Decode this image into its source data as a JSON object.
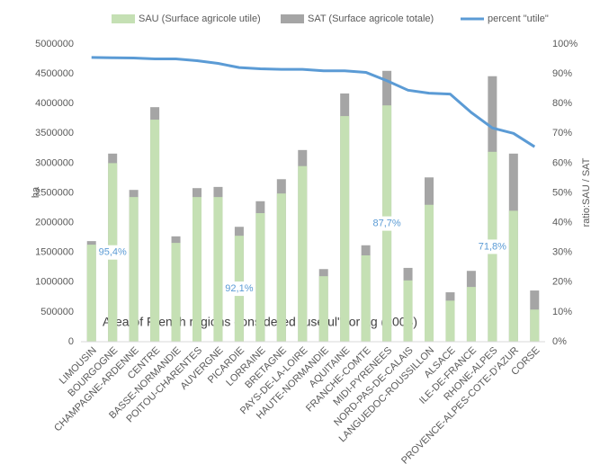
{
  "chart_data": {
    "type": "bar",
    "overlap": true,
    "annotation": "Area of French regions considered \"useful\" for ag (2008)",
    "categories": [
      "LIMOUSIN",
      "BOURGOGNE",
      "CHAMPAGNE-ARDENNE",
      "CENTRE",
      "BASSE-NORMANDIE",
      "POITOU-CHARENTES",
      "AUVERGNE",
      "PICARDIE",
      "LORRAINE",
      "BRETAGNE",
      "PAYS-DE-LA-LOIRE",
      "HAUTE-NORMANDIE",
      "AQUITAINE",
      "FRANCHE-COMTE",
      "MIDI-PYRENEES",
      "NORD-PAS-DE-CALAIS",
      "LANGUEDOC-ROUSSILLON",
      "ALSACE",
      "ILE-DE-FRANCE",
      "RHONE-ALPES",
      "PROVENCE-ALPES-COTE-D'AZUR",
      "CORSE"
    ],
    "series": [
      {
        "name": "SAU (Surface agricole utile)",
        "color": "#c5e0b4",
        "type": "bar",
        "values": [
          1630000,
          3000000,
          2430000,
          3730000,
          1660000,
          2430000,
          2430000,
          1780000,
          2160000,
          2490000,
          2950000,
          1100000,
          3790000,
          1450000,
          3970000,
          1030000,
          2300000,
          690000,
          920000,
          3190000,
          2200000,
          540000
        ]
      },
      {
        "name": "SAT (Surface agricole totale)",
        "color": "#a5a5a5",
        "type": "bar",
        "values": [
          1690000,
          3160000,
          2550000,
          3940000,
          1770000,
          2580000,
          2600000,
          1930000,
          2360000,
          2730000,
          3220000,
          1220000,
          4170000,
          1620000,
          4550000,
          1240000,
          2760000,
          830000,
          1190000,
          4460000,
          3160000,
          860000
        ]
      },
      {
        "name": "percent \"utile\"",
        "color": "#5b9bd5",
        "type": "line",
        "axis": "y2",
        "values": [
          95.5,
          95.4,
          95.3,
          95,
          95,
          94.4,
          93.5,
          92.1,
          91.7,
          91.5,
          91.5,
          91,
          91,
          90.5,
          87.7,
          84.5,
          83.5,
          83.2,
          77,
          71.8,
          70,
          65.5
        ],
        "value_labels": [
          null,
          "95,4%",
          null,
          null,
          null,
          null,
          null,
          "92,1%",
          null,
          null,
          null,
          null,
          null,
          null,
          "87,7%",
          null,
          null,
          null,
          null,
          "71,8%",
          null,
          null
        ]
      }
    ],
    "ylabel": "ha",
    "y2label": "ratio:SAU / SAT",
    "ylim": [
      0,
      5000000
    ],
    "yticks": [
      0,
      500000,
      1000000,
      1500000,
      2000000,
      2500000,
      3000000,
      3500000,
      4000000,
      4500000,
      5000000
    ],
    "y2lim": [
      0,
      100
    ],
    "y2ticks": [
      {
        "value": 0,
        "label": "0%"
      },
      {
        "value": 10,
        "label": "10%"
      },
      {
        "value": 20,
        "label": "20%"
      },
      {
        "value": 30,
        "label": "30%"
      },
      {
        "value": 40,
        "label": "40%"
      },
      {
        "value": 50,
        "label": "50%"
      },
      {
        "value": 60,
        "label": "60%"
      },
      {
        "value": 70,
        "label": "70%"
      },
      {
        "value": 80,
        "label": "80%"
      },
      {
        "value": 90,
        "label": "90%"
      },
      {
        "value": 100,
        "label": "100%"
      }
    ],
    "grid": false,
    "legend": "top"
  }
}
